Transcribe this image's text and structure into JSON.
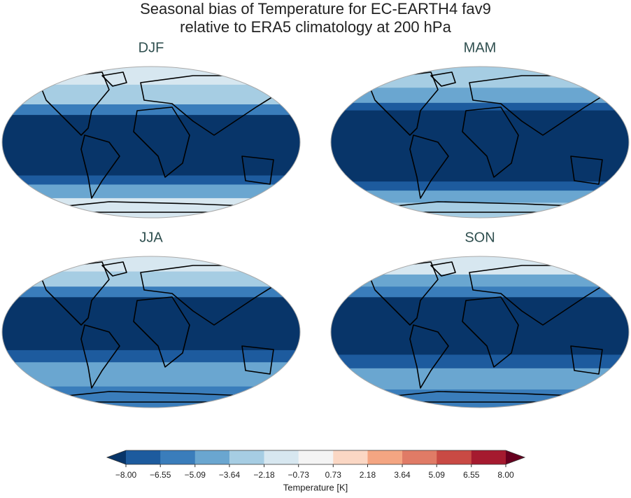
{
  "figure": {
    "title_lines": [
      "Seasonal bias of Temperature for EC-EARTH4 fav9",
      "relative to ERA5 climatology at 200 hPa"
    ],
    "panels": [
      {
        "title": "DJF"
      },
      {
        "title": "MAM"
      },
      {
        "title": "JJA"
      },
      {
        "title": "SON"
      }
    ],
    "colorbar": {
      "label": "Temperature [K]",
      "ticks": [
        {
          "value": -8,
          "label": "−8.00"
        },
        {
          "value": -6.55,
          "label": "−6.55"
        },
        {
          "value": -5.09,
          "label": "−5.09"
        },
        {
          "value": -3.64,
          "label": "−3.64"
        },
        {
          "value": -2.18,
          "label": "−2.18"
        },
        {
          "value": -0.73,
          "label": "−0.73"
        },
        {
          "value": 0.73,
          "label": "0.73"
        },
        {
          "value": 2.18,
          "label": "2.18"
        },
        {
          "value": 3.64,
          "label": "3.64"
        },
        {
          "value": 5.09,
          "label": "5.09"
        },
        {
          "value": 6.55,
          "label": "6.55"
        },
        {
          "value": 8,
          "label": "8.00"
        }
      ],
      "colors": [
        "#1d5b9e",
        "#3a7dbb",
        "#6aa6d0",
        "#a6cde3",
        "#d7e7f0",
        "#f4f4f4",
        "#fbd7c4",
        "#f4a582",
        "#e07b66",
        "#c94a44",
        "#a51a2f"
      ],
      "under_color": "#083569",
      "over_color": "#67001f"
    }
  }
}
